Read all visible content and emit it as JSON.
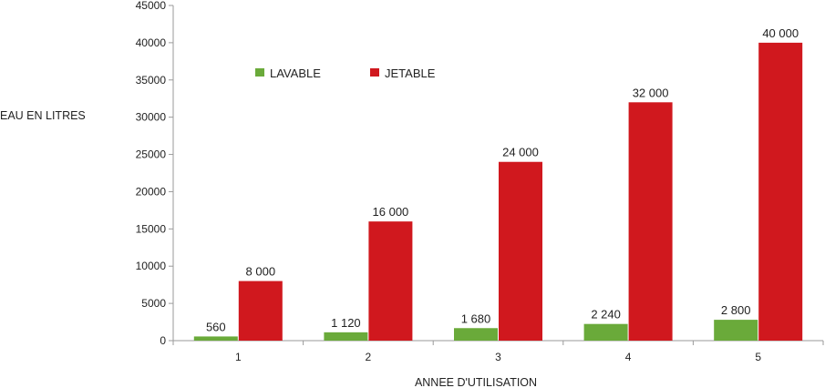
{
  "chart_data": {
    "type": "bar",
    "ylabel": "EAU EN LITRES",
    "xlabel": "ANNEE D'UTILISATION",
    "categories": [
      "1",
      "2",
      "3",
      "4",
      "5"
    ],
    "ylim": [
      0,
      45000
    ],
    "yticks": [
      "0",
      "5000",
      "10000",
      "15000",
      "20000",
      "25000",
      "30000",
      "35000",
      "40000",
      "45000"
    ],
    "grid": false,
    "legend_position": "top-left",
    "series": [
      {
        "name": "LAVABLE",
        "color": "#6aaa3a",
        "values": [
          560,
          1120,
          1680,
          2240,
          2800
        ],
        "labels": [
          "560",
          "1 120",
          "1 680",
          "2 240",
          "2 800"
        ]
      },
      {
        "name": "JETABLE",
        "color": "#d0181e",
        "values": [
          8000,
          16000,
          24000,
          32000,
          40000
        ],
        "labels": [
          "8 000",
          "16 000",
          "24 000",
          "32 000",
          "40 000"
        ]
      }
    ]
  }
}
